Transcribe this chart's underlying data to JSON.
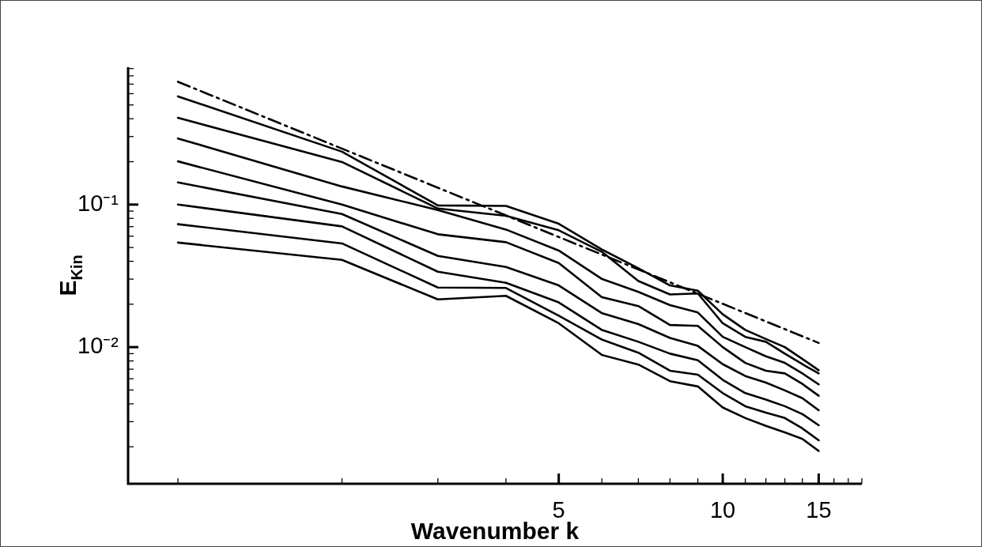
{
  "chart_data": {
    "type": "line",
    "xlabel": "Wavenumber k",
    "ylabel": "E$_{Kin}$",
    "log": "xy",
    "grid": false,
    "legend": false,
    "marker": "none",
    "line_style": "solid",
    "x": [
      1,
      2,
      3,
      4,
      5,
      6,
      7,
      8,
      9,
      10,
      11,
      12,
      13,
      14,
      15
    ],
    "xlim": [
      0.81,
      18
    ],
    "xticks": [
      {
        "value": 1,
        "label": null
      },
      {
        "value": 2,
        "label": null
      },
      {
        "value": 3,
        "label": null
      },
      {
        "value": 4,
        "label": null
      },
      5,
      {
        "value": 6,
        "label": null
      },
      {
        "value": 7,
        "label": null
      },
      {
        "value": 8,
        "label": null
      },
      {
        "value": 9,
        "label": null
      },
      10,
      {
        "value": 11,
        "label": null
      },
      {
        "value": 12,
        "label": null
      },
      {
        "value": 13,
        "label": null
      },
      {
        "value": 14,
        "label": null
      },
      15,
      {
        "value": 16,
        "label": null
      },
      {
        "value": 17,
        "label": null
      },
      {
        "value": 18,
        "label": null
      }
    ],
    "ylim": [
      0.0011,
      0.92
    ],
    "yticks": [
      {
        "value": 0.002,
        "label": null
      },
      {
        "value": 0.003,
        "label": null
      },
      {
        "value": 0.004,
        "label": null
      },
      {
        "value": 0.005,
        "label": null
      },
      {
        "value": 0.006,
        "label": null
      },
      {
        "value": 0.007,
        "label": null
      },
      {
        "value": 0.008,
        "label": null
      },
      {
        "value": 0.009,
        "label": null
      },
      {
        "value": 0.01,
        "label": "10⁻²"
      },
      {
        "value": 0.02,
        "label": null
      },
      {
        "value": 0.03,
        "label": null
      },
      {
        "value": 0.04,
        "label": null
      },
      {
        "value": 0.05,
        "label": null
      },
      {
        "value": 0.06,
        "label": null
      },
      {
        "value": 0.07,
        "label": null
      },
      {
        "value": 0.08,
        "label": null
      },
      {
        "value": 0.09,
        "label": null
      },
      {
        "value": 0.1,
        "label": "10⁻¹"
      },
      {
        "value": 0.2,
        "label": null
      },
      {
        "value": 0.3,
        "label": null
      },
      {
        "value": 0.4,
        "label": null
      },
      {
        "value": 0.5,
        "label": null
      },
      {
        "value": 0.6,
        "label": null
      },
      {
        "value": 0.7,
        "label": null
      },
      {
        "value": 0.8,
        "label": null
      },
      {
        "value": 0.9,
        "label": null
      }
    ],
    "series": [
      {
        "color": "#000000",
        "values": [
          0.574,
          0.235,
          0.0987,
          0.0978,
          0.0734,
          0.0484,
          0.0357,
          0.0271,
          0.0249,
          0.017,
          0.0132,
          0.0114,
          0.01,
          0.00826,
          0.00689
        ]
      },
      {
        "color": "#000000",
        "values": [
          0.406,
          0.199,
          0.0938,
          0.0834,
          0.066,
          0.0466,
          0.0291,
          0.0234,
          0.0238,
          0.0147,
          0.0118,
          0.0109,
          0.009,
          0.00759,
          0.00654
        ]
      },
      {
        "color": "#000000",
        "values": [
          0.291,
          0.134,
          0.0915,
          0.0668,
          0.0476,
          0.0301,
          0.0244,
          0.0197,
          0.0175,
          0.0118,
          0.01,
          0.00862,
          0.00775,
          0.00654,
          0.00548
        ]
      },
      {
        "color": "#000000",
        "values": [
          0.201,
          0.1,
          0.0619,
          0.0545,
          0.0389,
          0.0224,
          0.0194,
          0.0143,
          0.0141,
          0.01,
          0.00775,
          0.00683,
          0.00654,
          0.00552,
          0.00456
        ]
      },
      {
        "color": "#000000",
        "values": [
          0.143,
          0.0859,
          0.0436,
          0.0365,
          0.0271,
          0.0173,
          0.0145,
          0.0116,
          0.0102,
          0.00759,
          0.00627,
          0.00564,
          0.00497,
          0.00438,
          0.00361
        ]
      },
      {
        "color": "#000000",
        "values": [
          0.1,
          0.0703,
          0.0338,
          0.0283,
          0.0206,
          0.0132,
          0.0109,
          0.009,
          0.00809,
          0.00589,
          0.00476,
          0.00428,
          0.00385,
          0.00339,
          0.00283
        ]
      },
      {
        "color": "#000000",
        "values": [
          0.0728,
          0.0534,
          0.0262,
          0.026,
          0.0166,
          0.0113,
          0.00914,
          0.00683,
          0.00641,
          0.00476,
          0.00385,
          0.00347,
          0.00318,
          0.00269,
          0.00222
        ]
      },
      {
        "color": "#000000",
        "values": [
          0.0541,
          0.0409,
          0.0216,
          0.0229,
          0.0147,
          0.00881,
          0.00755,
          0.00577,
          0.0053,
          0.00377,
          0.00318,
          0.0028,
          0.00252,
          0.00227,
          0.00187
        ]
      },
      {
        "type": "line",
        "line_style": "dashed",
        "color": "#000000",
        "x": [
          1,
          15
        ],
        "values": [
          0.727,
          0.0107
        ]
      }
    ]
  }
}
